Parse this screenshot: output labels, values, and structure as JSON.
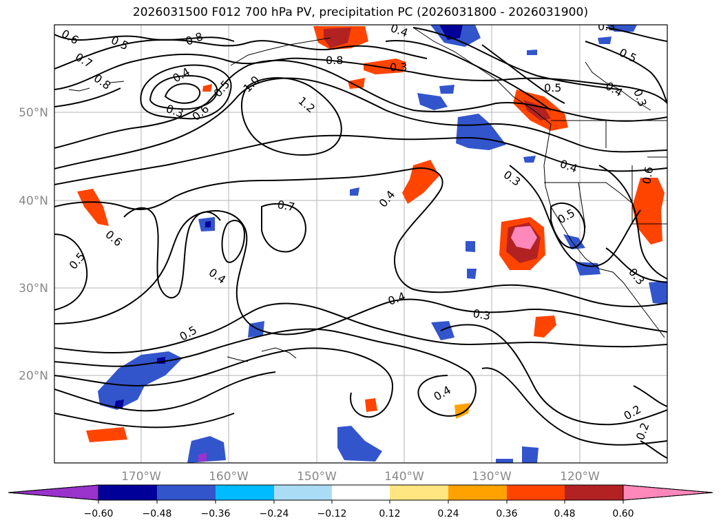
{
  "title": "2026031500 F012 700 hPa PV, precipitation PC (2026031800 - 2026031900)",
  "map": {
    "lon_labels": [
      "170°W",
      "160°W",
      "150°W",
      "140°W",
      "130°W",
      "120°W"
    ],
    "lat_labels": [
      "50°N",
      "40°N",
      "30°N",
      "20°N"
    ],
    "contour_labels": [
      "0.6",
      "0.5",
      "0.8",
      "0.7",
      "0.8",
      "0.4",
      "0.3",
      "0.6",
      "0.5",
      "1.0",
      "1.2",
      "0.8",
      "0.4",
      "0.3",
      "0.5",
      "0.4",
      "0.3",
      "0.5",
      "0.3",
      "0.7",
      "0.4",
      "0.6",
      "0.5",
      "0.4",
      "0.5",
      "0.3",
      "0.4",
      "0.3",
      "0.6",
      "0.5",
      "0.4",
      "0.2",
      "0.2",
      "0.3",
      "0.4"
    ]
  },
  "colorbar": {
    "ticks": [
      "−0.60",
      "−0.48",
      "−0.36",
      "−0.24",
      "−0.12",
      "0.12",
      "0.24",
      "0.36",
      "0.48",
      "0.60"
    ],
    "colors": [
      "#9933cc",
      "#000099",
      "#3355cc",
      "#00bbff",
      "#aaddf5",
      "#ffffff",
      "#ffe680",
      "#ffa200",
      "#ff4400",
      "#b22222",
      "#ff88bb"
    ]
  }
}
